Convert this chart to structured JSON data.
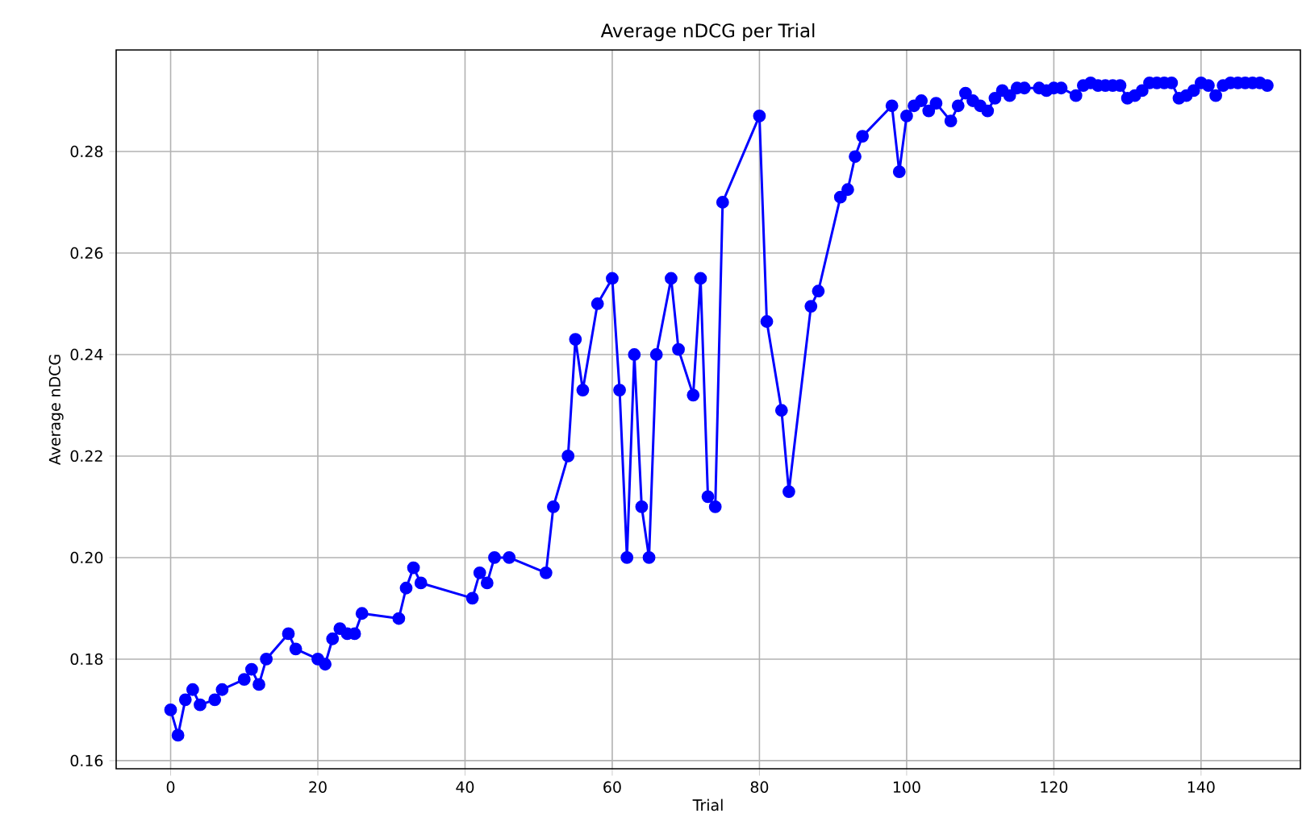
{
  "chart_data": {
    "type": "line",
    "title": "Average nDCG per Trial",
    "xlabel": "Trial",
    "ylabel": "Average nDCG",
    "x": [
      0,
      1,
      2,
      3,
      4,
      6,
      7,
      10,
      11,
      12,
      13,
      16,
      17,
      20,
      21,
      22,
      23,
      24,
      25,
      26,
      31,
      32,
      33,
      34,
      41,
      42,
      43,
      44,
      46,
      51,
      52,
      54,
      55,
      56,
      58,
      60,
      61,
      62,
      63,
      64,
      65,
      66,
      68,
      69,
      71,
      72,
      73,
      74,
      75,
      80,
      81,
      83,
      84,
      87,
      88,
      91,
      92,
      93,
      94,
      98,
      99,
      100,
      101,
      102,
      103,
      104,
      106,
      107,
      108,
      109,
      110,
      111,
      112,
      113,
      114,
      115,
      116,
      118,
      119,
      120,
      121,
      123,
      124,
      125,
      126,
      127,
      128,
      129,
      130,
      131,
      132,
      133,
      134,
      135,
      136,
      137,
      138,
      139,
      140,
      141,
      142,
      143,
      144,
      145,
      146,
      147,
      148,
      149
    ],
    "series": [
      {
        "color": "#0000ff",
        "values": [
          0.17,
          0.165,
          0.172,
          0.174,
          0.171,
          0.172,
          0.174,
          0.176,
          0.178,
          0.175,
          0.18,
          0.185,
          0.182,
          0.18,
          0.179,
          0.184,
          0.186,
          0.185,
          0.185,
          0.189,
          0.188,
          0.194,
          0.198,
          0.195,
          0.192,
          0.197,
          0.195,
          0.2,
          0.2,
          0.197,
          0.21,
          0.22,
          0.243,
          0.233,
          0.25,
          0.255,
          0.233,
          0.2,
          0.24,
          0.21,
          0.2,
          0.24,
          0.255,
          0.241,
          0.232,
          0.255,
          0.212,
          0.21,
          0.27,
          0.287,
          0.2465,
          0.229,
          0.213,
          0.2495,
          0.2525,
          0.271,
          0.2725,
          0.279,
          0.283,
          0.289,
          0.276,
          0.287,
          0.289,
          0.29,
          0.288,
          0.2895,
          0.286,
          0.289,
          0.2915,
          0.29,
          0.289,
          0.288,
          0.2905,
          0.292,
          0.291,
          0.2925,
          0.2925,
          0.2925,
          0.292,
          0.2925,
          0.2925,
          0.291,
          0.293,
          0.2935,
          0.293,
          0.293,
          0.293,
          0.293,
          0.2905,
          0.291,
          0.292,
          0.2935,
          0.2935,
          0.2935,
          0.2935,
          0.2905,
          0.291,
          0.292,
          0.2935,
          0.293,
          0.291,
          0.293,
          0.2935,
          0.2935,
          0.2935,
          0.2935,
          0.2935,
          0.293
        ]
      }
    ],
    "xlim": [
      -7.4,
      153.5
    ],
    "ylim": [
      0.1584,
      0.3
    ],
    "xticks": [
      0,
      20,
      40,
      60,
      80,
      100,
      120,
      140
    ],
    "yticks": [
      0.16,
      0.18,
      {
        "value": 0.2,
        "label": "0.20"
      },
      0.22,
      0.24,
      0.26,
      0.28
    ],
    "grid": true,
    "marker": "circle",
    "line_style": "solid"
  }
}
